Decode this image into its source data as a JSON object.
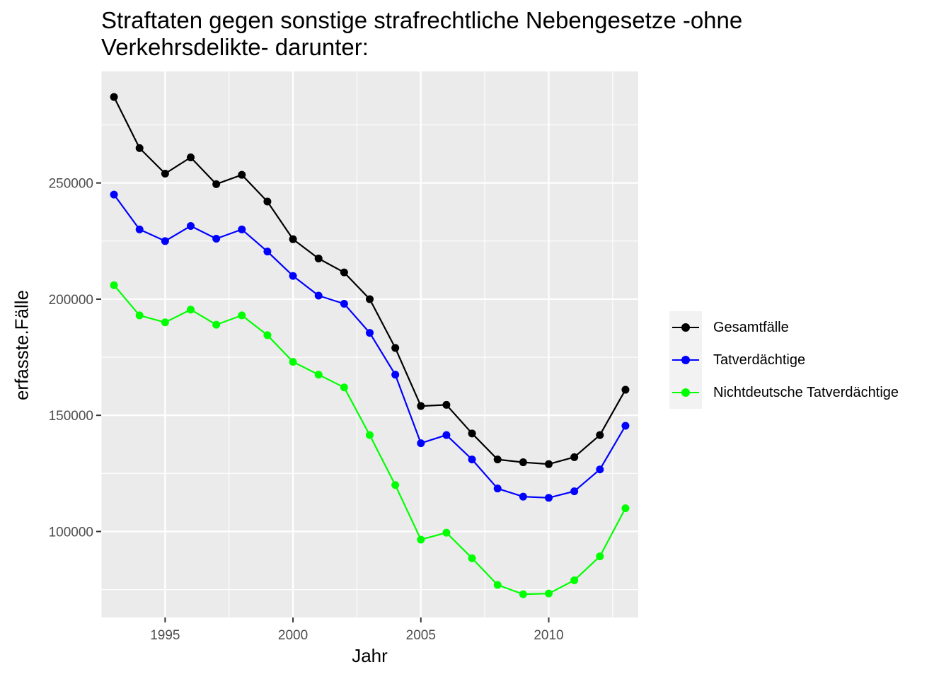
{
  "chart_data": {
    "type": "line",
    "title": "Straftaten gegen sonstige strafrechtliche Nebengesetze -ohne\nVerkehrsdelikte- darunter:",
    "xlabel": "Jahr",
    "ylabel": "erfasste.Fälle",
    "xlim": [
      1992.5,
      2013.5
    ],
    "ylim": [
      63000,
      298000
    ],
    "x_ticks": [
      1995,
      2000,
      2005,
      2010
    ],
    "y_ticks": [
      100000,
      150000,
      200000,
      250000
    ],
    "x_tick_labels": [
      "1995",
      "2000",
      "2005",
      "2010"
    ],
    "y_tick_labels": [
      "100000",
      "150000",
      "200000",
      "250000"
    ],
    "grid": true,
    "legend_position": "right",
    "x": [
      1993,
      1994,
      1995,
      1996,
      1997,
      1998,
      1999,
      2000,
      2001,
      2002,
      2003,
      2004,
      2005,
      2006,
      2007,
      2008,
      2009,
      2010,
      2011,
      2012,
      2013
    ],
    "series": [
      {
        "name": "Gesamtfälle",
        "color": "#000000",
        "values": [
          287000,
          265000,
          254000,
          261000,
          249500,
          253500,
          242000,
          225800,
          217500,
          211500,
          200000,
          179000,
          154000,
          154500,
          142200,
          131000,
          129800,
          129000,
          132000,
          141500,
          161000
        ]
      },
      {
        "name": "Tatverdächtige",
        "color": "#0000ff",
        "values": [
          245000,
          230000,
          225000,
          231500,
          226000,
          230000,
          220500,
          210000,
          201500,
          198000,
          185500,
          167500,
          138000,
          141500,
          131000,
          118500,
          115000,
          114500,
          117300,
          126700,
          145500
        ]
      },
      {
        "name": "Nichtdeutsche Tatverdächtige",
        "color": "#00ff00",
        "values": [
          206000,
          193000,
          190000,
          195500,
          189000,
          193000,
          184500,
          173000,
          167500,
          162000,
          141500,
          120000,
          96500,
          99500,
          88500,
          77000,
          73000,
          73300,
          79000,
          89300,
          110000
        ]
      }
    ]
  }
}
